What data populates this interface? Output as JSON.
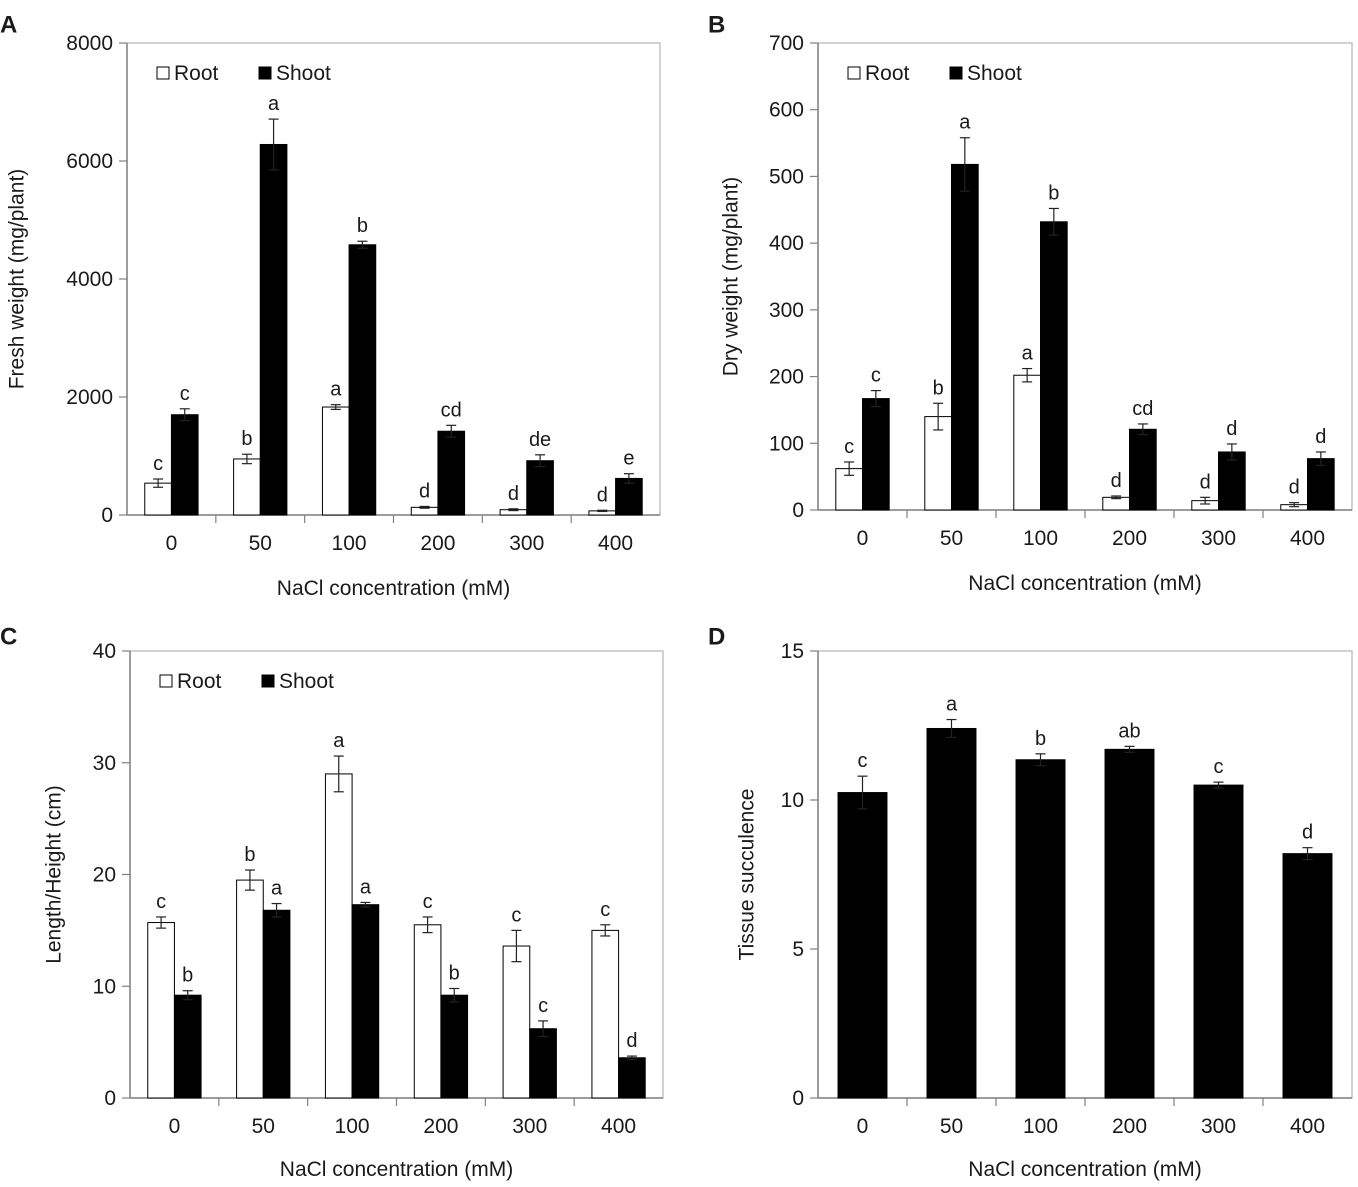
{
  "figure": {
    "colors": {
      "root": "#ffffff",
      "shoot": "#000000",
      "frame": "#b5b5b5",
      "axis": "#808080",
      "text": "#1a1a1a"
    }
  },
  "chart_data": [
    {
      "id": "A",
      "type": "bar",
      "panel_label": "A",
      "title": "",
      "xlabel": "NaCl concentration (mM)",
      "ylabel": "Fresh weight (mg/plant)",
      "ylim": [
        0,
        8000
      ],
      "yticks": [
        0,
        2000,
        4000,
        6000,
        8000
      ],
      "categories": [
        "0",
        "50",
        "100",
        "200",
        "300",
        "400"
      ],
      "legend": {
        "position": "top-left",
        "entries": [
          "Root",
          "Shoot"
        ]
      },
      "series": [
        {
          "name": "Root",
          "fill": "white",
          "values": [
            540,
            950,
            1830,
            130,
            90,
            70
          ],
          "errors": [
            70,
            80,
            40,
            15,
            15,
            10
          ],
          "labels": [
            "c",
            "b",
            "a",
            "d",
            "d",
            "d"
          ]
        },
        {
          "name": "Shoot",
          "fill": "black",
          "values": [
            1700,
            6280,
            4580,
            1420,
            920,
            620
          ],
          "errors": [
            100,
            430,
            60,
            100,
            100,
            80
          ],
          "labels": [
            "c",
            "a",
            "b",
            "cd",
            "de",
            "e"
          ]
        }
      ]
    },
    {
      "id": "B",
      "type": "bar",
      "panel_label": "B",
      "title": "",
      "xlabel": "NaCl concentration (mM)",
      "ylabel": "Dry weight (mg/plant)",
      "ylim": [
        0,
        700
      ],
      "yticks": [
        0,
        100,
        200,
        300,
        400,
        500,
        600,
        700
      ],
      "categories": [
        "0",
        "50",
        "100",
        "200",
        "300",
        "400"
      ],
      "legend": {
        "position": "top-left",
        "entries": [
          "Root",
          "Shoot"
        ]
      },
      "series": [
        {
          "name": "Root",
          "fill": "white",
          "values": [
            62,
            140,
            202,
            19,
            14,
            8
          ],
          "errors": [
            10,
            20,
            10,
            2,
            5,
            3
          ],
          "labels": [
            "c",
            "b",
            "a",
            "d",
            "d",
            "d"
          ]
        },
        {
          "name": "Shoot",
          "fill": "black",
          "values": [
            167,
            518,
            432,
            121,
            87,
            77
          ],
          "errors": [
            12,
            40,
            20,
            8,
            12,
            10
          ],
          "labels": [
            "c",
            "a",
            "b",
            "cd",
            "d",
            "d"
          ]
        }
      ]
    },
    {
      "id": "C",
      "type": "bar",
      "panel_label": "C",
      "title": "",
      "xlabel": "NaCl concentration (mM)",
      "ylabel": "Length/Height (cm)",
      "ylim": [
        0,
        40
      ],
      "yticks": [
        0,
        10,
        20,
        30,
        40
      ],
      "categories": [
        "0",
        "50",
        "100",
        "200",
        "300",
        "400"
      ],
      "legend": {
        "position": "top-left",
        "entries": [
          "Root",
          "Shoot"
        ]
      },
      "series": [
        {
          "name": "Root",
          "fill": "white",
          "values": [
            15.7,
            19.5,
            29.0,
            15.5,
            13.6,
            15.0
          ],
          "errors": [
            0.5,
            0.9,
            1.6,
            0.7,
            1.4,
            0.5
          ],
          "labels": [
            "c",
            "b",
            "a",
            "c",
            "c",
            "c"
          ]
        },
        {
          "name": "Shoot",
          "fill": "black",
          "values": [
            9.2,
            16.8,
            17.3,
            9.2,
            6.2,
            3.6
          ],
          "errors": [
            0.4,
            0.6,
            0.2,
            0.6,
            0.7,
            0.15
          ],
          "labels": [
            "b",
            "a",
            "a",
            "b",
            "c",
            "d"
          ]
        }
      ]
    },
    {
      "id": "D",
      "type": "bar",
      "panel_label": "D",
      "title": "",
      "xlabel": "NaCl concentration (mM)",
      "ylabel": "Tissue succulence",
      "ylim": [
        0,
        15
      ],
      "yticks": [
        0,
        5,
        10,
        15
      ],
      "categories": [
        "0",
        "50",
        "100",
        "200",
        "300",
        "400"
      ],
      "legend": null,
      "series": [
        {
          "name": "Tissue succulence",
          "fill": "black",
          "values": [
            10.25,
            12.4,
            11.35,
            11.7,
            10.5,
            8.2
          ],
          "errors": [
            0.55,
            0.3,
            0.2,
            0.1,
            0.1,
            0.2
          ],
          "labels": [
            "c",
            "a",
            "b",
            "ab",
            "c",
            "d"
          ]
        }
      ]
    }
  ]
}
